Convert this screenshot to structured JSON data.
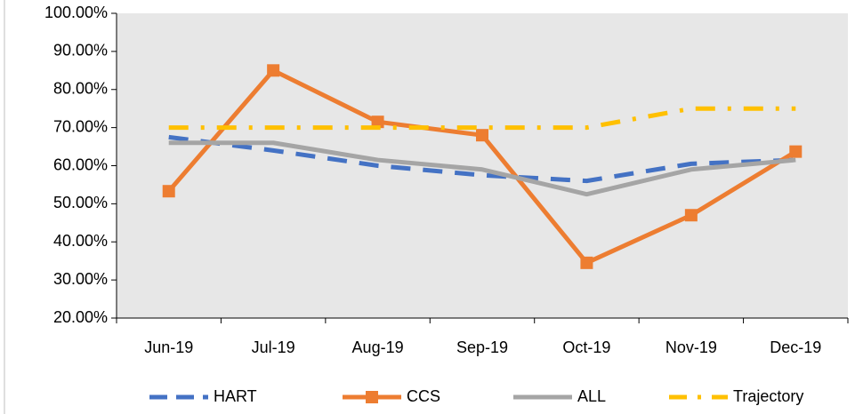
{
  "chart_data": {
    "type": "line",
    "categories": [
      "Jun-19",
      "Jul-19",
      "Aug-19",
      "Sep-19",
      "Oct-19",
      "Nov-19",
      "Dec-19"
    ],
    "series": [
      {
        "name": "HART",
        "color": "#4472c4",
        "style": "dashed",
        "values": [
          67.5,
          64,
          60,
          57.5,
          56,
          60.5,
          61.5
        ]
      },
      {
        "name": "CCS",
        "color": "#ed7d31",
        "style": "solid",
        "marker": "square",
        "values": [
          53.3,
          85,
          71.5,
          68,
          34.5,
          47,
          63.7
        ]
      },
      {
        "name": "ALL",
        "color": "#a5a5a5",
        "style": "solid",
        "values": [
          66,
          66,
          61.5,
          59,
          52.5,
          59,
          61.5
        ]
      },
      {
        "name": "Trajectory",
        "color": "#ffc000",
        "style": "dashdot",
        "values": [
          70,
          70,
          70,
          70,
          70,
          75,
          75
        ]
      }
    ],
    "ylim": [
      20,
      100
    ],
    "yticks": [
      {
        "value": 20,
        "label": "20.00%"
      },
      {
        "value": 30,
        "label": "30.00%"
      },
      {
        "value": 40,
        "label": "40.00%"
      },
      {
        "value": 50,
        "label": "50.00%"
      },
      {
        "value": 60,
        "label": "60.00%"
      },
      {
        "value": 70,
        "label": "70.00%"
      },
      {
        "value": 80,
        "label": "80.00%"
      },
      {
        "value": 90,
        "label": "90.00%"
      },
      {
        "value": 100,
        "label": "100.00%"
      }
    ],
    "grid": false,
    "legend": "bottom",
    "plot_background": "#e7e7e7"
  }
}
